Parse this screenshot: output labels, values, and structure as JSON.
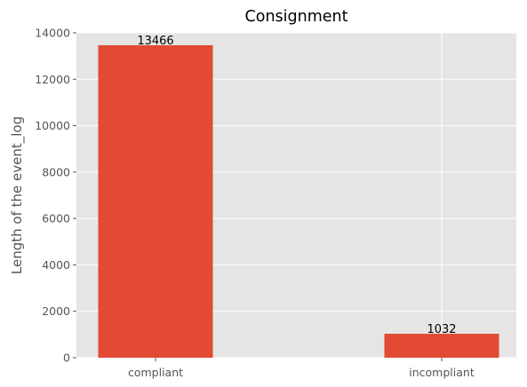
{
  "colors": {
    "bar": "#E24A33",
    "plot_bg": "#E5E5E5",
    "grid": "#FFFFFF",
    "tick_text": "#555555"
  },
  "chart_data": {
    "type": "bar",
    "title": "Consignment",
    "xlabel": "",
    "ylabel": "Length of the event_log",
    "categories": [
      "compliant",
      "incompliant"
    ],
    "values": [
      13466,
      1032
    ],
    "data_labels": [
      "13466",
      "1032"
    ],
    "ylim": [
      0,
      14000
    ],
    "yticks": [
      0,
      2000,
      4000,
      6000,
      8000,
      10000,
      12000,
      14000
    ],
    "ytick_labels": [
      "0",
      "2000",
      "4000",
      "6000",
      "8000",
      "10000",
      "12000",
      "14000"
    ],
    "grid": true,
    "legend": "none"
  }
}
